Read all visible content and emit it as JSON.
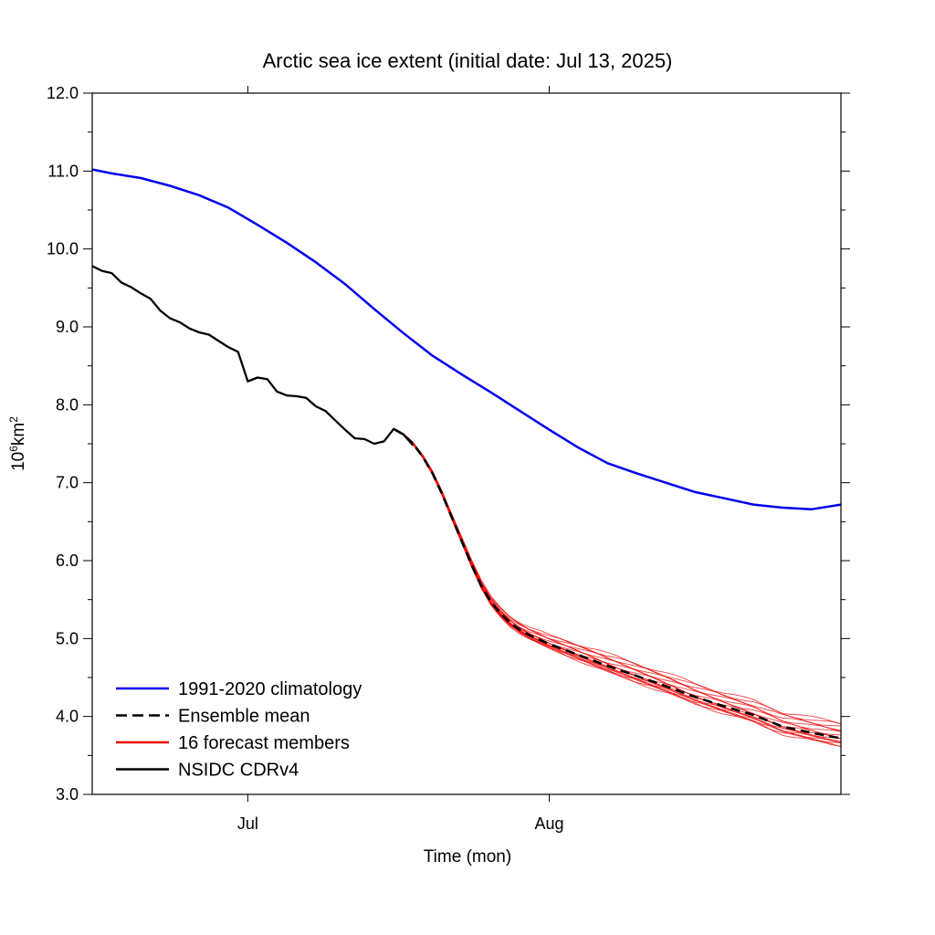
{
  "chart_data": {
    "type": "line",
    "title": "Arctic sea ice extent (initial date: Jul 13, 2025)",
    "xlabel": "Time (mon)",
    "ylabel": "10",
    "ylabel_sup": "6",
    "ylabel_rest": "km",
    "ylabel_sup2": "2",
    "x_range": [
      "2025-06-15",
      "2025-08-31"
    ],
    "ylim": [
      3.0,
      12.0
    ],
    "y_ticks": [
      "3.0",
      "4.0",
      "5.0",
      "6.0",
      "7.0",
      "8.0",
      "9.0",
      "10.0",
      "11.0",
      "12.0"
    ],
    "x_ticks": [
      {
        "date": "2025-07-01",
        "label": "Jul"
      },
      {
        "date": "2025-08-01",
        "label": "Aug"
      }
    ],
    "grid": false,
    "legend_position": "bottom-left",
    "legend": [
      {
        "label": "1991-2020 climatology",
        "color": "#0000ee",
        "style": "solid"
      },
      {
        "label": "Ensemble mean",
        "color": "#000000",
        "style": "dashed"
      },
      {
        "label": "16 forecast members",
        "color": "#ee0000",
        "style": "solid"
      },
      {
        "label": "NSIDC CDRv4",
        "color": "#000000",
        "style": "solid"
      }
    ],
    "series": [
      {
        "key": "climatology",
        "color": "#0000ee",
        "points": [
          [
            "2025-06-15",
            11.02
          ],
          [
            "2025-06-17",
            10.97
          ],
          [
            "2025-06-20",
            10.91
          ],
          [
            "2025-06-23",
            10.81
          ],
          [
            "2025-06-26",
            10.69
          ],
          [
            "2025-06-29",
            10.53
          ],
          [
            "2025-07-02",
            10.31
          ],
          [
            "2025-07-05",
            10.08
          ],
          [
            "2025-07-08",
            9.83
          ],
          [
            "2025-07-11",
            9.55
          ],
          [
            "2025-07-14",
            9.23
          ],
          [
            "2025-07-17",
            8.92
          ],
          [
            "2025-07-20",
            8.63
          ],
          [
            "2025-07-23",
            8.39
          ],
          [
            "2025-07-26",
            8.16
          ],
          [
            "2025-07-29",
            7.92
          ],
          [
            "2025-08-01",
            7.68
          ],
          [
            "2025-08-04",
            7.45
          ],
          [
            "2025-08-07",
            7.25
          ],
          [
            "2025-08-10",
            7.12
          ],
          [
            "2025-08-13",
            7.0
          ],
          [
            "2025-08-16",
            6.88
          ],
          [
            "2025-08-19",
            6.8
          ],
          [
            "2025-08-22",
            6.72
          ],
          [
            "2025-08-25",
            6.68
          ],
          [
            "2025-08-28",
            6.66
          ],
          [
            "2025-08-31",
            6.72
          ]
        ]
      },
      {
        "key": "observed",
        "color": "#000000",
        "points": [
          [
            "2025-06-15",
            9.78
          ],
          [
            "2025-06-16",
            9.72
          ],
          [
            "2025-06-17",
            9.69
          ],
          [
            "2025-06-18",
            9.57
          ],
          [
            "2025-06-19",
            9.51
          ],
          [
            "2025-06-20",
            9.43
          ],
          [
            "2025-06-21",
            9.36
          ],
          [
            "2025-06-22",
            9.21
          ],
          [
            "2025-06-23",
            9.11
          ],
          [
            "2025-06-24",
            9.06
          ],
          [
            "2025-06-25",
            8.98
          ],
          [
            "2025-06-26",
            8.93
          ],
          [
            "2025-06-27",
            8.9
          ],
          [
            "2025-06-28",
            8.82
          ],
          [
            "2025-06-29",
            8.74
          ],
          [
            "2025-06-30",
            8.68
          ],
          [
            "2025-07-01",
            8.3
          ],
          [
            "2025-07-02",
            8.35
          ],
          [
            "2025-07-03",
            8.33
          ],
          [
            "2025-07-04",
            8.17
          ],
          [
            "2025-07-05",
            8.12
          ],
          [
            "2025-07-06",
            8.11
          ],
          [
            "2025-07-07",
            8.09
          ],
          [
            "2025-07-08",
            7.98
          ],
          [
            "2025-07-09",
            7.92
          ],
          [
            "2025-07-10",
            7.8
          ],
          [
            "2025-07-11",
            7.68
          ],
          [
            "2025-07-12",
            7.57
          ],
          [
            "2025-07-13",
            7.56
          ],
          [
            "2025-07-14",
            7.5
          ],
          [
            "2025-07-15",
            7.53
          ],
          [
            "2025-07-16",
            7.69
          ],
          [
            "2025-07-17",
            7.62
          ],
          [
            "2025-07-18",
            7.48
          ]
        ]
      },
      {
        "key": "ensemble_mean",
        "color": "#000000",
        "points": [
          [
            "2025-07-16",
            7.69
          ],
          [
            "2025-07-17",
            7.62
          ],
          [
            "2025-07-18",
            7.5
          ],
          [
            "2025-07-19",
            7.33
          ],
          [
            "2025-07-20",
            7.12
          ],
          [
            "2025-07-21",
            6.85
          ],
          [
            "2025-07-22",
            6.55
          ],
          [
            "2025-07-23",
            6.25
          ],
          [
            "2025-07-24",
            5.95
          ],
          [
            "2025-07-25",
            5.68
          ],
          [
            "2025-07-26",
            5.47
          ],
          [
            "2025-07-27",
            5.32
          ],
          [
            "2025-07-28",
            5.2
          ],
          [
            "2025-07-29",
            5.11
          ],
          [
            "2025-07-30",
            5.04
          ],
          [
            "2025-08-01",
            4.93
          ],
          [
            "2025-08-04",
            4.79
          ],
          [
            "2025-08-07",
            4.65
          ],
          [
            "2025-08-10",
            4.52
          ],
          [
            "2025-08-13",
            4.39
          ],
          [
            "2025-08-16",
            4.25
          ],
          [
            "2025-08-19",
            4.13
          ],
          [
            "2025-08-22",
            4.02
          ],
          [
            "2025-08-25",
            3.87
          ],
          [
            "2025-08-28",
            3.79
          ],
          [
            "2025-08-31",
            3.72
          ]
        ]
      }
    ],
    "members_count": 16,
    "members_spread_end": [
      3.62,
      3.92
    ],
    "members_color": "#ee0000"
  }
}
